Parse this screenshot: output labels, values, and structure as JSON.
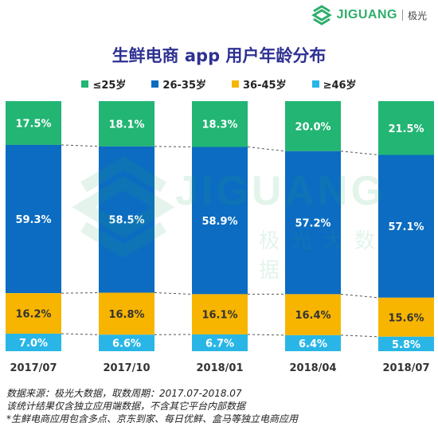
{
  "brand": {
    "name": "JIGUANG",
    "sub": "极光"
  },
  "watermark": {
    "text": "JIGUANG",
    "sub": "极光大数据"
  },
  "colors": {
    "lt25": "#22b573",
    "a26_35": "#0b6cc1",
    "a36_45": "#f7b500",
    "ge46": "#29b6e6",
    "title": "#2e3192"
  },
  "chart_data": {
    "type": "bar",
    "stacked": true,
    "percent": true,
    "title": "生鲜电商 app 用户年龄分布",
    "categories": [
      "2017/07",
      "2017/10",
      "2018/01",
      "2018/04",
      "2018/07"
    ],
    "series": [
      {
        "name": "≤25岁",
        "values": [
          17.5,
          18.1,
          18.3,
          20.0,
          21.5
        ],
        "labels": [
          "17.5%",
          "18.1%",
          "18.3%",
          "20.0%",
          "21.5%"
        ]
      },
      {
        "name": "26-35岁",
        "values": [
          59.3,
          58.5,
          58.9,
          57.2,
          57.1
        ],
        "labels": [
          "59.3%",
          "58.5%",
          "58.9%",
          "57.2%",
          "57.1%"
        ]
      },
      {
        "name": "36-45岁",
        "values": [
          16.2,
          16.8,
          16.1,
          16.4,
          15.6
        ],
        "labels": [
          "16.2%",
          "16.8%",
          "16.1%",
          "16.4%",
          "15.6%"
        ]
      },
      {
        "name": "≥46岁",
        "values": [
          7.0,
          6.6,
          6.7,
          6.4,
          5.8
        ],
        "labels": [
          "7.0%",
          "6.6%",
          "6.7%",
          "6.4%",
          "5.8%"
        ]
      }
    ],
    "legend_position": "top",
    "grid": false
  },
  "notes": [
    "数据来源：极光大数据，取数周期：2017.07-2018.07",
    "该统计结果仅含独立应用端数据，不含其它平台内部数据",
    "*生鲜电商应用包含多点、京东到家、每日优鲜、盒马等独立电商应用"
  ]
}
